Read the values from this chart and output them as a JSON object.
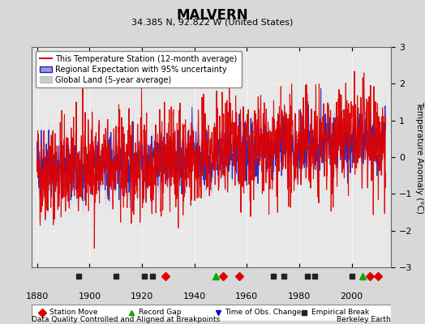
{
  "title": "MALVERN",
  "subtitle": "34.385 N, 92.822 W (United States)",
  "ylabel": "Temperature Anomaly (°C)",
  "xlabel_note": "Data Quality Controlled and Aligned at Breakpoints",
  "credit": "Berkeley Earth",
  "ylim": [
    -3,
    3
  ],
  "xlim": [
    1878,
    2015
  ],
  "yticks": [
    -3,
    -2,
    -1,
    0,
    1,
    2,
    3
  ],
  "xticks": [
    1880,
    1900,
    1920,
    1940,
    1960,
    1980,
    2000
  ],
  "bg_color": "#d8d8d8",
  "plot_bg_color": "#e8e8e8",
  "station_color": "#dd0000",
  "regional_color": "#2222bb",
  "regional_fill_color": "#9999dd",
  "global_color": "#c0c0c0",
  "legend_items": [
    "This Temperature Station (12-month average)",
    "Regional Expectation with 95% uncertainty",
    "Global Land (5-year average)"
  ],
  "markers": {
    "station_move": {
      "years": [
        1929,
        1951,
        1957,
        2007,
        2010
      ],
      "color": "#dd0000",
      "marker": "D"
    },
    "record_gap": {
      "years": [
        1948,
        2004
      ],
      "color": "#00aa00",
      "marker": "^"
    },
    "time_obs_change": {
      "years": [],
      "color": "#0000cc",
      "marker": "v"
    },
    "empirical_break": {
      "years": [
        1896,
        1910,
        1921,
        1924,
        1970,
        1974,
        1983,
        1986,
        2000
      ],
      "color": "#222222",
      "marker": "s"
    }
  },
  "seed": 42
}
